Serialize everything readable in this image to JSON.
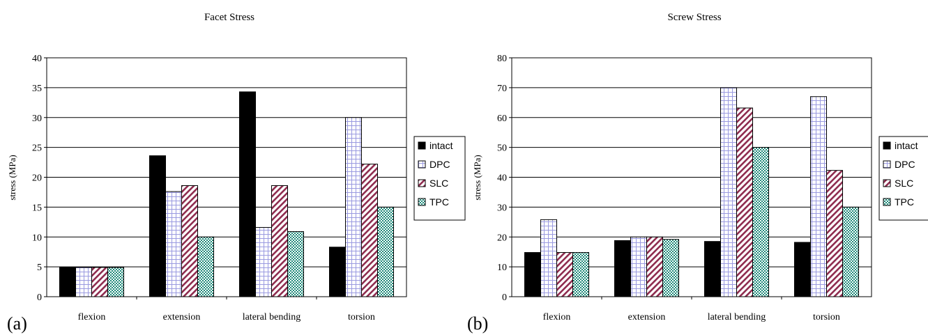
{
  "chart_data": [
    {
      "type": "bar",
      "title": "Facet Stress",
      "panel_label": "(a)",
      "ylabel": "stress (MPa)",
      "ylim": [
        0,
        40
      ],
      "yticks": [
        0,
        5,
        10,
        15,
        20,
        25,
        30,
        35,
        40
      ],
      "categories": [
        "flexion",
        "extension",
        "lateral bending",
        "torsion"
      ],
      "grid": "horizontal",
      "legend_position": "right",
      "series": [
        {
          "name": "intact",
          "values": [
            4.9,
            23.6,
            34.3,
            8.3
          ]
        },
        {
          "name": "DPC",
          "values": [
            4.9,
            17.6,
            11.6,
            30.0
          ]
        },
        {
          "name": "SLC",
          "values": [
            4.9,
            18.6,
            18.6,
            22.2
          ]
        },
        {
          "name": "TPC",
          "values": [
            4.9,
            10.0,
            10.9,
            15.0
          ]
        }
      ]
    },
    {
      "type": "bar",
      "title": "Screw Stress",
      "panel_label": "(b)",
      "ylabel": "stress (MPa)",
      "ylim": [
        0,
        80
      ],
      "yticks": [
        0,
        10,
        20,
        30,
        40,
        50,
        60,
        70,
        80
      ],
      "categories": [
        "flexion",
        "extension",
        "lateral bending",
        "torsion"
      ],
      "grid": "horizontal",
      "legend_position": "right",
      "series": [
        {
          "name": "intact",
          "values": [
            14.8,
            18.8,
            18.5,
            18.2
          ]
        },
        {
          "name": "DPC",
          "values": [
            25.8,
            20.0,
            70.0,
            67.0
          ]
        },
        {
          "name": "SLC",
          "values": [
            14.8,
            20.0,
            63.2,
            42.3
          ]
        },
        {
          "name": "TPC",
          "values": [
            14.8,
            19.2,
            50.0,
            30.0
          ]
        }
      ]
    }
  ],
  "series_styles": {
    "intact": {
      "fill": "#000000",
      "pattern": "solid"
    },
    "DPC": {
      "fill": "#ffffff",
      "pattern": "grid",
      "stroke": "#9a9ae0"
    },
    "SLC": {
      "fill": "#ffffff",
      "pattern": "diagonal",
      "stroke": "#8e2b4e"
    },
    "TPC": {
      "fill": "#ffffff",
      "pattern": "checker",
      "stroke": "#1f8a7a"
    }
  }
}
